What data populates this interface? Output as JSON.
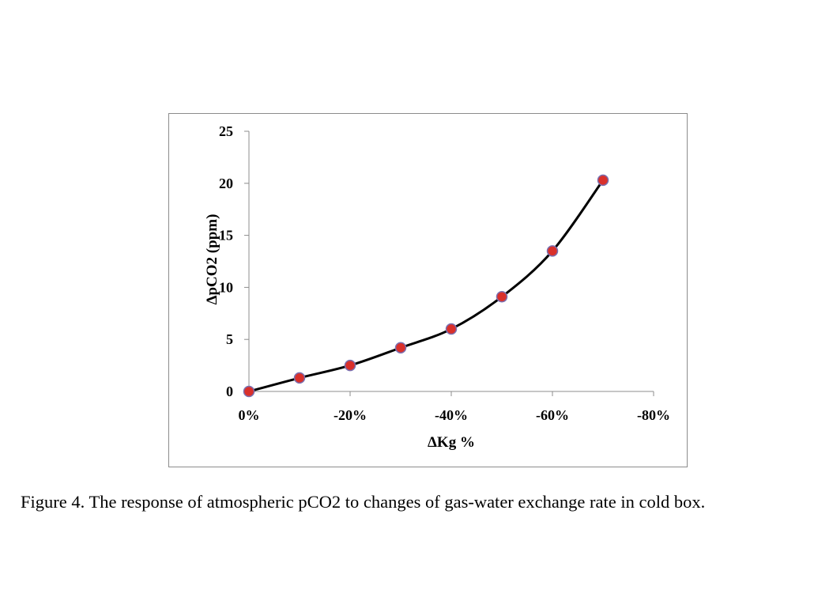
{
  "chart_data": {
    "type": "scatter",
    "title": "",
    "xlabel": "ΔKg %",
    "ylabel": "ΔpCO2 (ppm)",
    "x": [
      0,
      -10,
      -20,
      -30,
      -40,
      -50,
      -60,
      -70
    ],
    "series": [
      {
        "name": "ΔpCO2",
        "values": [
          0,
          1.3,
          2.5,
          4.2,
          6.0,
          9.1,
          13.5,
          20.3
        ]
      }
    ],
    "trendline": "smooth black curve through points",
    "xlim": [
      0,
      -80
    ],
    "ylim": [
      0,
      25
    ],
    "xticks": [
      0,
      -20,
      -40,
      -60,
      -80
    ],
    "xtick_labels": [
      "0%",
      "-20%",
      "-40%",
      "-60%",
      "-80%"
    ],
    "yticks": [
      0,
      5,
      10,
      15,
      20,
      25
    ],
    "ytick_labels": [
      "0",
      "5",
      "10",
      "15",
      "20",
      "25"
    ],
    "grid": false,
    "legend": "none",
    "colors": {
      "marker": "#d9302b",
      "marker_edge": "#7a6fb0",
      "line": "#000000",
      "frame": "#8c8c8c"
    }
  },
  "caption": "Figure 4. The response of atmospheric pCO2 to changes of gas-water exchange rate in cold box."
}
